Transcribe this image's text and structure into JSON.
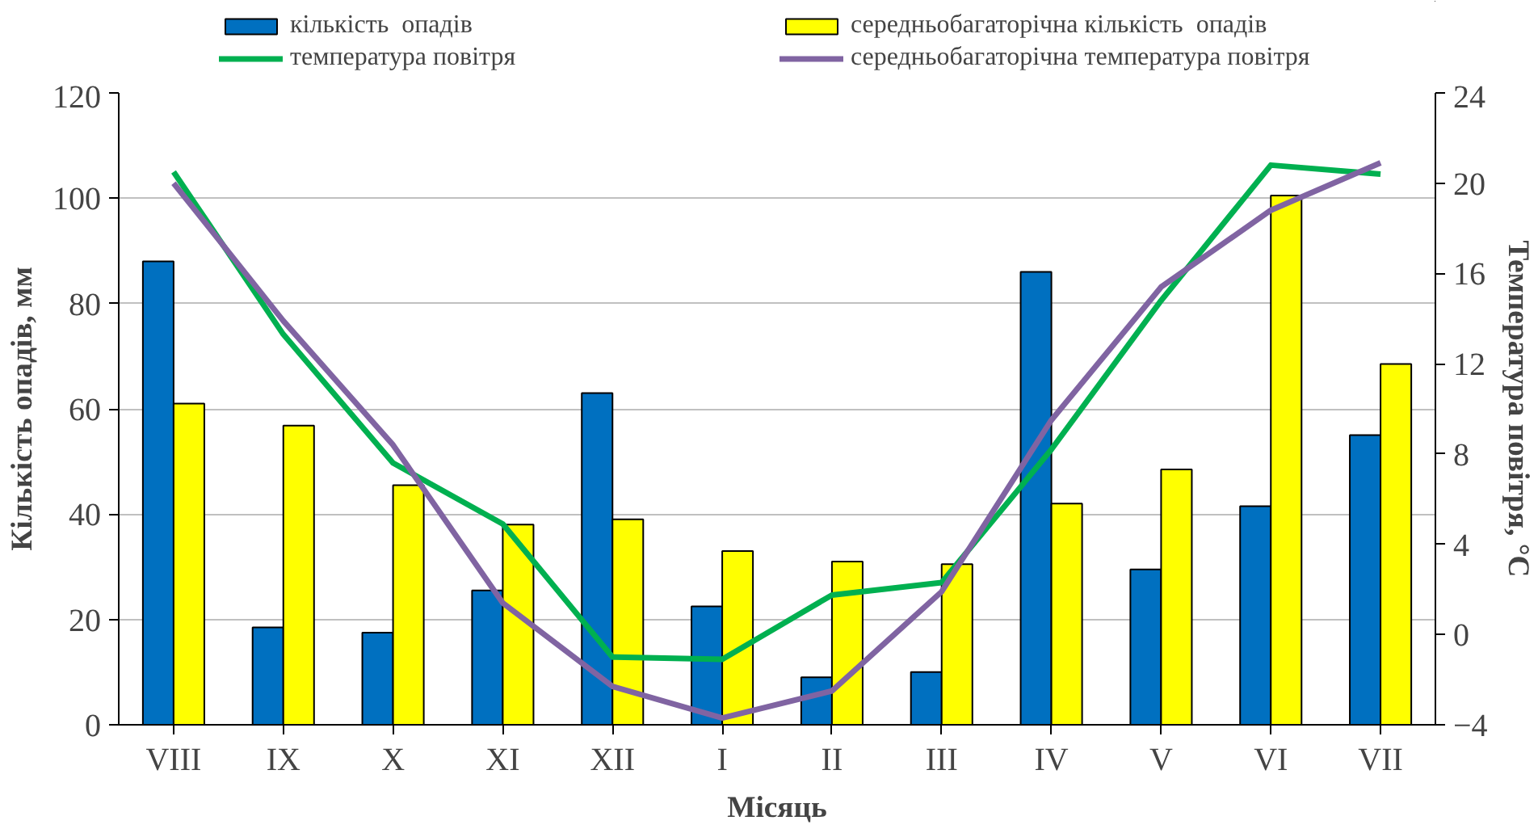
{
  "chart_data": {
    "type": "bar",
    "xlabel": "Місяць",
    "ylabel": "Кількість опадів, мм",
    "y2label": "Температура повітря, °С",
    "categories": [
      "VIII",
      "IX",
      "X",
      "XI",
      "XII",
      "I",
      "II",
      "III",
      "IV",
      "V",
      "VI",
      "VII"
    ],
    "series": [
      {
        "name": "кількість  опадів",
        "color": "#0070c0",
        "values": [
          88,
          18.5,
          17.5,
          25.5,
          63,
          22.5,
          9,
          10,
          86,
          29.5,
          41.5,
          55
        ]
      },
      {
        "name": "середньобагаторічна кількість  опадів",
        "color": "#ffff00",
        "values": [
          61,
          56.8,
          45.5,
          38,
          39,
          33,
          31,
          30.5,
          42,
          48.5,
          100.5,
          68.5
        ]
      },
      {
        "name": "температура повітря",
        "type": "line",
        "axis": "y2",
        "color": "#00b050",
        "values": [
          20.5,
          13.3,
          7.6,
          4.9,
          -1.0,
          -1.1,
          1.75,
          2.3,
          8.2,
          14.8,
          20.8,
          20.4
        ]
      },
      {
        "name": "середньобагаторічна температура повітря",
        "type": "line",
        "axis": "y2",
        "color": "#8064a2",
        "values": [
          20.0,
          13.9,
          8.4,
          1.4,
          -2.3,
          -3.7,
          -2.5,
          1.9,
          9.5,
          15.4,
          18.8,
          20.9
        ]
      }
    ],
    "ylim": [
      0,
      120
    ],
    "yticks": [
      0,
      20,
      40,
      60,
      80,
      100,
      120
    ],
    "y2lim": [
      -4,
      24
    ],
    "y2ticks": [
      -4,
      0,
      4,
      8,
      12,
      16,
      20,
      24
    ],
    "grid": "y",
    "legend": "top",
    "line_style": "solid",
    "marker": "none"
  }
}
